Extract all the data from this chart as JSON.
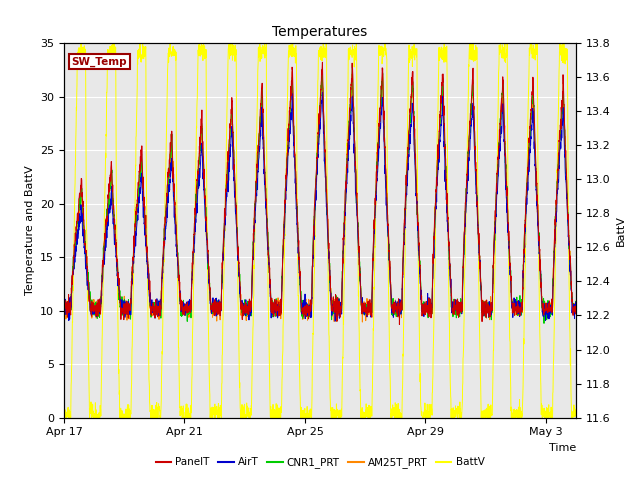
{
  "title": "Temperatures",
  "xlabel": "Time",
  "ylabel_left": "Temperature and BattV",
  "ylabel_right": "BattV",
  "xlim_days": [
    0,
    17
  ],
  "ylim_left": [
    0,
    35
  ],
  "ylim_right": [
    11.6,
    13.8
  ],
  "xtick_labels": [
    "Apr 17",
    "Apr 21",
    "Apr 25",
    "Apr 29",
    "May 3"
  ],
  "xtick_positions": [
    0,
    4,
    8,
    12,
    16
  ],
  "yticks_left": [
    0,
    5,
    10,
    15,
    20,
    25,
    30,
    35
  ],
  "yticks_right": [
    11.6,
    11.8,
    12.0,
    12.2,
    12.4,
    12.6,
    12.8,
    13.0,
    13.2,
    13.4,
    13.6,
    13.8
  ],
  "line_colors": {
    "PanelT": "#cc0000",
    "AirT": "#0000cc",
    "CNR1_PRT": "#00cc00",
    "AM25T_PRT": "#ff8800",
    "BattV": "#ffff00"
  },
  "sw_temp_box_color": "#990000",
  "background_color": "#e8e8e8",
  "grid_color": "#ffffff",
  "fig_bg": "#ffffff",
  "num_days": 17,
  "pts_per_day": 144
}
